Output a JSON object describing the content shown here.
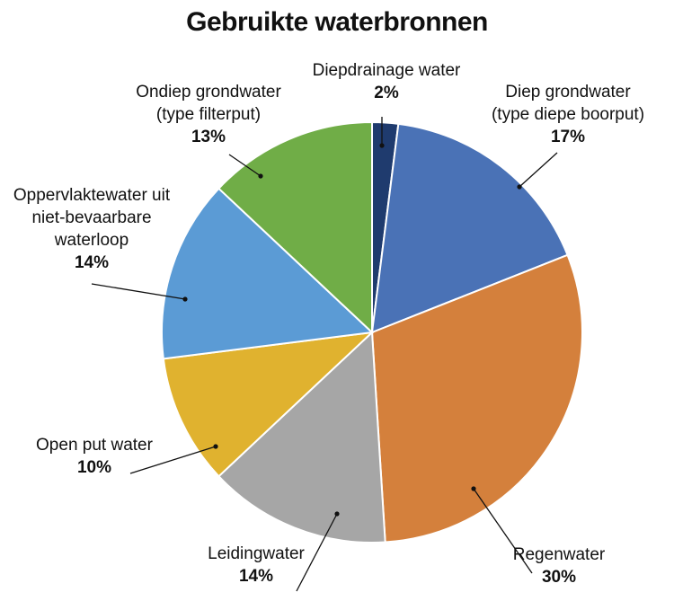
{
  "chart_data": {
    "type": "pie",
    "title": "Gebruikte waterbronnen",
    "slices": [
      {
        "label_lines": [
          "Diepdrainage water"
        ],
        "value_label": "2%",
        "value": 2,
        "color": "#1f3b6e"
      },
      {
        "label_lines": [
          "Diep grondwater",
          "(type diepe boorput)"
        ],
        "value_label": "17%",
        "value": 17,
        "color": "#4a72b6"
      },
      {
        "label_lines": [
          "Regenwater"
        ],
        "value_label": "30%",
        "value": 30,
        "color": "#d4803c"
      },
      {
        "label_lines": [
          "Leidingwater"
        ],
        "value_label": "14%",
        "value": 14,
        "color": "#a6a6a6"
      },
      {
        "label_lines": [
          "Open put water"
        ],
        "value_label": "10%",
        "value": 10,
        "color": "#e0b22f"
      },
      {
        "label_lines": [
          "Oppervlaktewater uit",
          "niet-bevaarbare",
          "waterloop"
        ],
        "value_label": "14%",
        "value": 14,
        "color": "#5b9bd5"
      },
      {
        "label_lines": [
          "Ondiep grondwater",
          "(type filterput)"
        ],
        "value_label": "13%",
        "value": 13,
        "color": "#70ad47"
      }
    ]
  }
}
